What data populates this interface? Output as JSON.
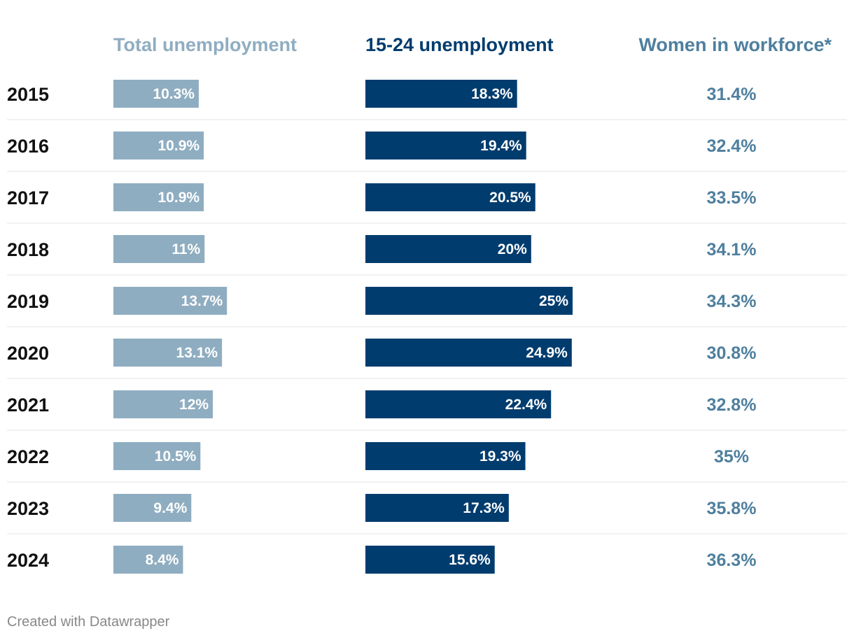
{
  "columns": {
    "total": "Total unemployment",
    "youth": "15-24 unemployment",
    "women": "Women in workforce*"
  },
  "colors": {
    "total_bar": "#8fadc1",
    "youth_bar": "#003c6e",
    "women_text": "#4e7f9e",
    "total_header": "#8fadc1",
    "youth_header": "#003c6e",
    "women_header": "#4e7f9e",
    "divider": "#e4e4e4",
    "bar_label": "#ffffff"
  },
  "chart_data": {
    "type": "table",
    "title": "",
    "categories": [
      "2015",
      "2016",
      "2017",
      "2018",
      "2019",
      "2020",
      "2021",
      "2022",
      "2023",
      "2024"
    ],
    "series": [
      {
        "name": "Total unemployment",
        "display": "bar",
        "values": [
          10.3,
          10.9,
          10.9,
          11,
          13.7,
          13.1,
          12,
          10.5,
          9.4,
          8.4
        ],
        "labels": [
          "10.3%",
          "10.9%",
          "10.9%",
          "11%",
          "13.7%",
          "13.1%",
          "12%",
          "10.5%",
          "9.4%",
          "8.4%"
        ]
      },
      {
        "name": "15-24 unemployment",
        "display": "bar",
        "values": [
          18.3,
          19.4,
          20.5,
          20,
          25,
          24.9,
          22.4,
          19.3,
          17.3,
          15.6
        ],
        "labels": [
          "18.3%",
          "19.4%",
          "20.5%",
          "20%",
          "25%",
          "24.9%",
          "22.4%",
          "19.3%",
          "17.3%",
          "15.6%"
        ]
      },
      {
        "name": "Women in workforce*",
        "display": "text",
        "values": [
          31.4,
          32.4,
          33.5,
          34.1,
          34.3,
          30.8,
          32.8,
          35,
          35.8,
          36.3
        ],
        "labels": [
          "31.4%",
          "32.4%",
          "33.5%",
          "34.1%",
          "34.3%",
          "30.8%",
          "32.8%",
          "35%",
          "35.8%",
          "36.3%"
        ]
      }
    ],
    "bar_scale_max": 25
  },
  "footer": "Created with Datawrapper"
}
